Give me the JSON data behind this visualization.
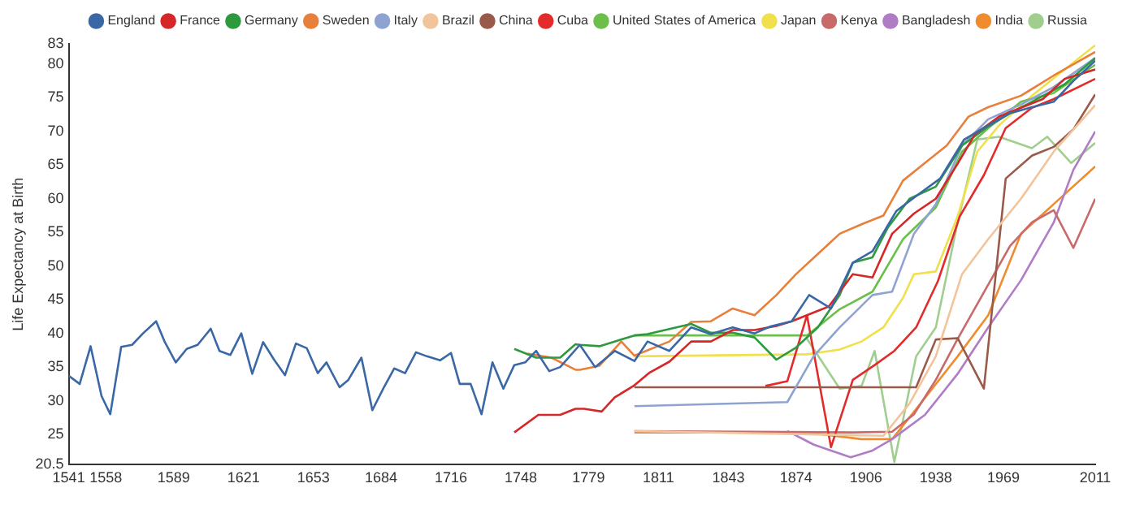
{
  "chart_data": {
    "type": "line",
    "ylabel": "Life Expectancy at Birth",
    "xlim": [
      1541,
      2011
    ],
    "xticks": [
      1541,
      1558,
      1589,
      1621,
      1653,
      1684,
      1716,
      1748,
      1779,
      1811,
      1843,
      1874,
      1906,
      1938,
      1969,
      2011
    ],
    "ylim": [
      20.5,
      83
    ],
    "yticks": [
      20.5,
      25,
      30,
      35,
      40,
      45,
      50,
      55,
      60,
      65,
      70,
      75,
      80,
      83
    ],
    "grid": false,
    "legend": "top",
    "marker": "none",
    "line_style": "solid",
    "series": [
      {
        "name": "England",
        "color": "#3a67a5",
        "x": [
          1541,
          1546,
          1551,
          1556,
          1560,
          1565,
          1570,
          1575,
          1581,
          1585,
          1590,
          1595,
          1600,
          1606,
          1610,
          1615,
          1620,
          1625,
          1630,
          1635,
          1640,
          1645,
          1650,
          1655,
          1659,
          1665,
          1669,
          1675,
          1680,
          1685,
          1690,
          1695,
          1700,
          1705,
          1711,
          1716,
          1720,
          1725,
          1730,
          1735,
          1740,
          1745,
          1750,
          1755,
          1761,
          1766,
          1775,
          1782,
          1791,
          1800,
          1806,
          1816,
          1826,
          1835,
          1845,
          1855,
          1862,
          1872,
          1880,
          1890,
          1900,
          1909,
          1920,
          1929,
          1940,
          1951,
          1962,
          1972,
          1982,
          1992,
          2001,
          2011
        ],
        "values": [
          33.7,
          32.5,
          38.1,
          30.7,
          28,
          38,
          38.3,
          40,
          41.8,
          38.7,
          35.7,
          37.7,
          38.3,
          40.7,
          37.4,
          36.8,
          40,
          34,
          38.7,
          36.1,
          33.8,
          38.5,
          37.8,
          34.1,
          35.7,
          32,
          33.1,
          36.4,
          28.6,
          31.8,
          34.8,
          34.1,
          37.2,
          36.6,
          36,
          37.1,
          32.5,
          32.5,
          28,
          35.7,
          31.8,
          35.3,
          35.7,
          37.4,
          34.4,
          35,
          38.3,
          35,
          37.4,
          35.9,
          38.8,
          37.4,
          40.9,
          39.9,
          40.9,
          40,
          41,
          41.8,
          45.7,
          43.7,
          50.5,
          52.2,
          58.2,
          60.4,
          63,
          68.8,
          70.9,
          72.7,
          73.6,
          74.4,
          77.5,
          80.5
        ]
      },
      {
        "name": "France",
        "color": "#d62728",
        "x": [
          1745,
          1756,
          1766,
          1773,
          1777,
          1785,
          1791,
          1800,
          1807,
          1816,
          1826,
          1835,
          1845,
          1855,
          1865,
          1872,
          1882,
          1889,
          1900,
          1909,
          1918,
          1928,
          1938,
          1948,
          1956,
          1967,
          1977,
          1987,
          1997,
          2011
        ],
        "values": [
          25.3,
          27.9,
          27.9,
          28.8,
          28.8,
          28.4,
          30.5,
          32.3,
          34.2,
          35.8,
          38.8,
          38.8,
          40.5,
          40.5,
          41.1,
          41.8,
          43.1,
          44,
          48.8,
          48.3,
          54.8,
          57.8,
          60,
          65.2,
          69.6,
          72.2,
          73.5,
          74.8,
          77.8,
          79.2
        ]
      },
      {
        "name": "Germany",
        "color": "#2e9a3e",
        "x": [
          1745,
          1755,
          1766,
          1773,
          1775,
          1784,
          1800,
          1806,
          1826,
          1835,
          1845,
          1855,
          1865,
          1874,
          1884,
          1894,
          1900,
          1909,
          1916,
          1926,
          1938,
          1950,
          1961,
          1972,
          1982,
          1997,
          2011
        ],
        "values": [
          37.7,
          36.4,
          36.4,
          38.4,
          38.3,
          38.1,
          39.7,
          39.9,
          41.4,
          40.1,
          40.1,
          39.4,
          36.1,
          37.9,
          40.9,
          45.7,
          50.5,
          51.3,
          55.7,
          60,
          61.8,
          67.9,
          70.5,
          72.7,
          74.4,
          77,
          80.9
        ]
      },
      {
        "name": "Sweden",
        "color": "#e8803c",
        "x": [
          1751,
          1762,
          1773,
          1775,
          1784,
          1794,
          1800,
          1816,
          1826,
          1835,
          1845,
          1855,
          1865,
          1874,
          1884,
          1894,
          1904,
          1914,
          1923,
          1933,
          1943,
          1953,
          1962,
          1977,
          1992,
          2011
        ],
        "values": [
          37,
          36.4,
          34.6,
          34.6,
          35.2,
          38.8,
          36.7,
          38.8,
          41.7,
          41.8,
          43.7,
          42.7,
          45.7,
          48.8,
          51.8,
          54.8,
          56.2,
          57.5,
          62.7,
          65.3,
          67.9,
          72.2,
          73.6,
          75.3,
          78.3,
          81.8
        ]
      },
      {
        "name": "Italy",
        "color": "#8ea3d1",
        "x": [
          1800,
          1870,
          1882,
          1894,
          1909,
          1918,
          1928,
          1938,
          1950,
          1962,
          1977,
          1992,
          2011
        ],
        "values": [
          29.2,
          29.8,
          36.6,
          40.9,
          45.7,
          46.2,
          54.8,
          59.2,
          67.9,
          71.8,
          74,
          76.6,
          80.9
        ]
      },
      {
        "name": "Brazil",
        "color": "#f2c49b",
        "x": [
          1800,
          1914,
          1926,
          1938,
          1950,
          1962,
          1977,
          1992,
          2011
        ],
        "values": [
          25.5,
          24.8,
          29.6,
          36.6,
          48.8,
          54,
          60,
          67,
          73.9
        ]
      },
      {
        "name": "China",
        "color": "#9a5a4a",
        "x": [
          1800,
          1929,
          1938,
          1948,
          1960,
          1970,
          1982,
          1992,
          2001,
          2011
        ],
        "values": [
          32,
          32,
          39.1,
          39.3,
          31.8,
          63,
          66.4,
          67.7,
          70.3,
          75.5
        ]
      },
      {
        "name": "Cuba",
        "color": "#e32b2b",
        "x": [
          1860,
          1870,
          1879,
          1890,
          1900,
          1910,
          1919,
          1929,
          1939,
          1949,
          1960,
          1970,
          1982,
          1992,
          2011
        ],
        "values": [
          32.2,
          32.9,
          42.7,
          23.1,
          33.1,
          35.3,
          37.4,
          40.9,
          47.8,
          57.4,
          63.5,
          70.5,
          73.5,
          74.8,
          77.8
        ]
      },
      {
        "name": "United States of America",
        "color": "#6cbf4a",
        "x": [
          1800,
          1879,
          1894,
          1909,
          1923,
          1938,
          1950,
          1962,
          1977,
          1992,
          2011
        ],
        "values": [
          39.7,
          39.7,
          43.6,
          46.2,
          54,
          58.7,
          67,
          70.5,
          74.4,
          75.7,
          79.9
        ]
      },
      {
        "name": "Japan",
        "color": "#f0e04c",
        "x": [
          1800,
          1879,
          1894,
          1904,
          1914,
          1923,
          1928,
          1938,
          1948,
          1957,
          1967,
          1982,
          1997,
          2011
        ],
        "values": [
          36.6,
          36.9,
          37.6,
          38.8,
          40.9,
          45.3,
          48.8,
          49.2,
          57.4,
          67,
          70.9,
          75.3,
          79.2,
          82.8
        ]
      },
      {
        "name": "Kenya",
        "color": "#c86a6a",
        "x": [
          1800,
          1900,
          1918,
          1928,
          1938,
          1948,
          1960,
          1972,
          1982,
          1992,
          2001,
          2011
        ],
        "values": [
          25.5,
          25.3,
          25.4,
          28,
          33.1,
          39.2,
          46.1,
          53,
          56.5,
          58.3,
          52.7,
          60
        ]
      },
      {
        "name": "Bangladesh",
        "color": "#b07cc6",
        "x": [
          1870,
          1882,
          1899,
          1909,
          1918,
          1933,
          1948,
          1962,
          1977,
          1992,
          2001,
          2011
        ],
        "values": [
          25.5,
          23.5,
          21.6,
          22.6,
          24.3,
          27.9,
          34,
          40.9,
          47.9,
          56.5,
          64.3,
          70
        ]
      },
      {
        "name": "India",
        "color": "#ef8c2e",
        "x": [
          1800,
          1879,
          1904,
          1918,
          1933,
          1948,
          1962,
          1977,
          1992,
          2011
        ],
        "values": [
          25.3,
          25.3,
          24.3,
          24.3,
          30.4,
          36.6,
          42.7,
          54.8,
          59.2,
          64.8
        ]
      },
      {
        "name": "Russia",
        "color": "#9fce8f",
        "x": [
          1879,
          1894,
          1904,
          1910,
          1919,
          1929,
          1938,
          1948,
          1957,
          1967,
          1982,
          1989,
          2000,
          2011
        ],
        "values": [
          39.2,
          31.8,
          32.2,
          37.4,
          20.9,
          36.6,
          40.9,
          56.5,
          68.8,
          69.2,
          67.5,
          69.2,
          65.3,
          68.3
        ]
      }
    ]
  }
}
